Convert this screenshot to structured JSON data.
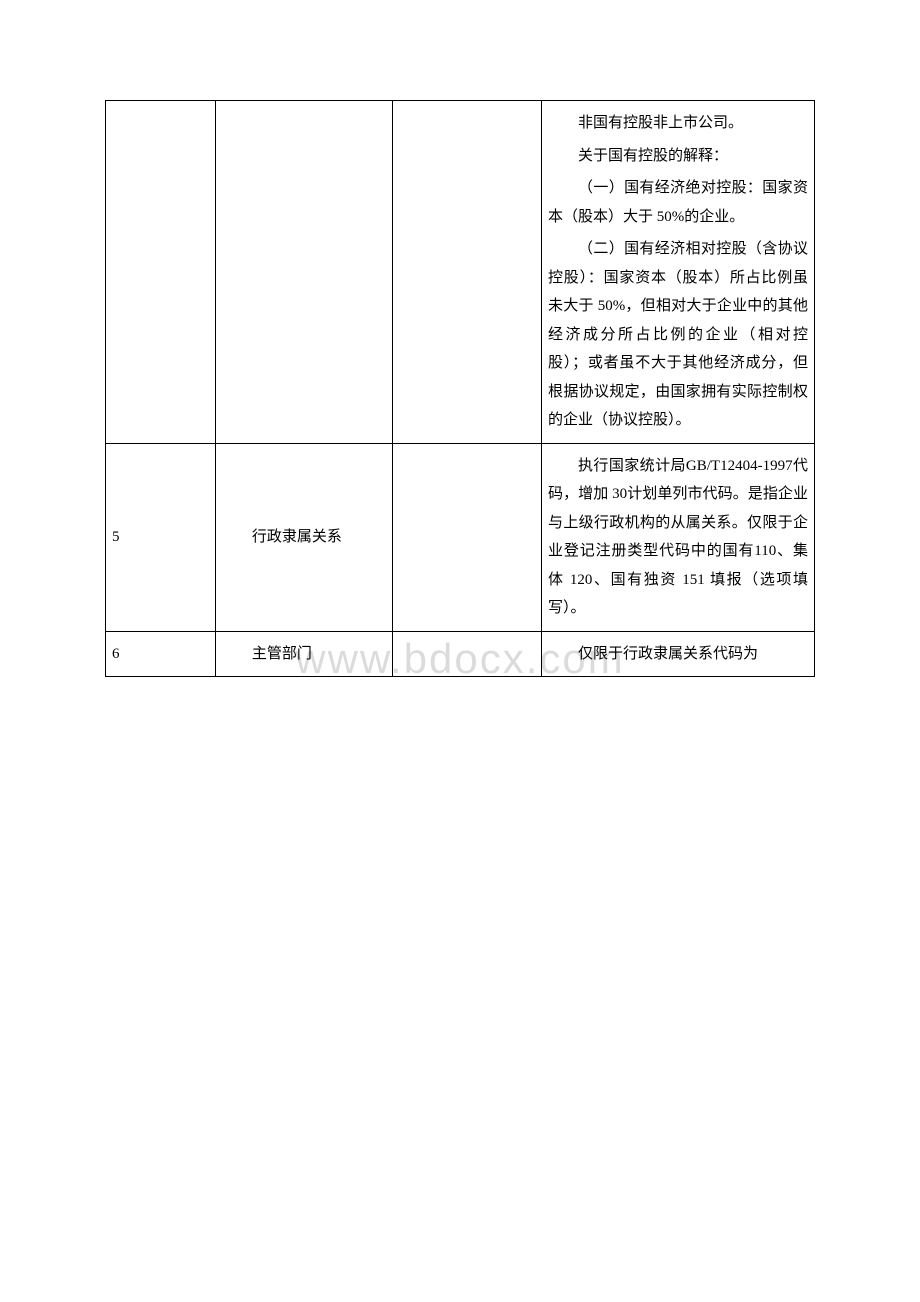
{
  "watermark": "www.bdocx.com",
  "rows": [
    {
      "seq": "",
      "name": "",
      "mid": "",
      "desc_parts": [
        "非国有控股非上市公司。",
        "关于国有控股的解释：",
        "（一）国有经济绝对控股：国家资本（股本）大于 50%的企业。",
        "（二）国有经济相对控股（含协议控股）：国家资本（股本）所占比例虽未大于 50%，但相对大于企业中的其他经济成分所占比例的企业（相对控股）；或者虽不大于其他经济成分，但根据协议规定，由国家拥有实际控制权的企业（协议控股）。"
      ]
    },
    {
      "seq": "5",
      "name": "行政隶属关系",
      "mid": "",
      "desc_parts": [
        "执行国家统计局GB/T12404-1997代码，增加 30计划单列市代码。是指企业与上级行政机构的从属关系。仅限于企业登记注册类型代码中的国有110、集体 120、国有独资 151 填报（选项填写）。"
      ]
    },
    {
      "seq": "6",
      "name": "主管部门",
      "mid": "",
      "desc_parts": [
        "仅限于行政隶属关系代码为"
      ]
    }
  ]
}
